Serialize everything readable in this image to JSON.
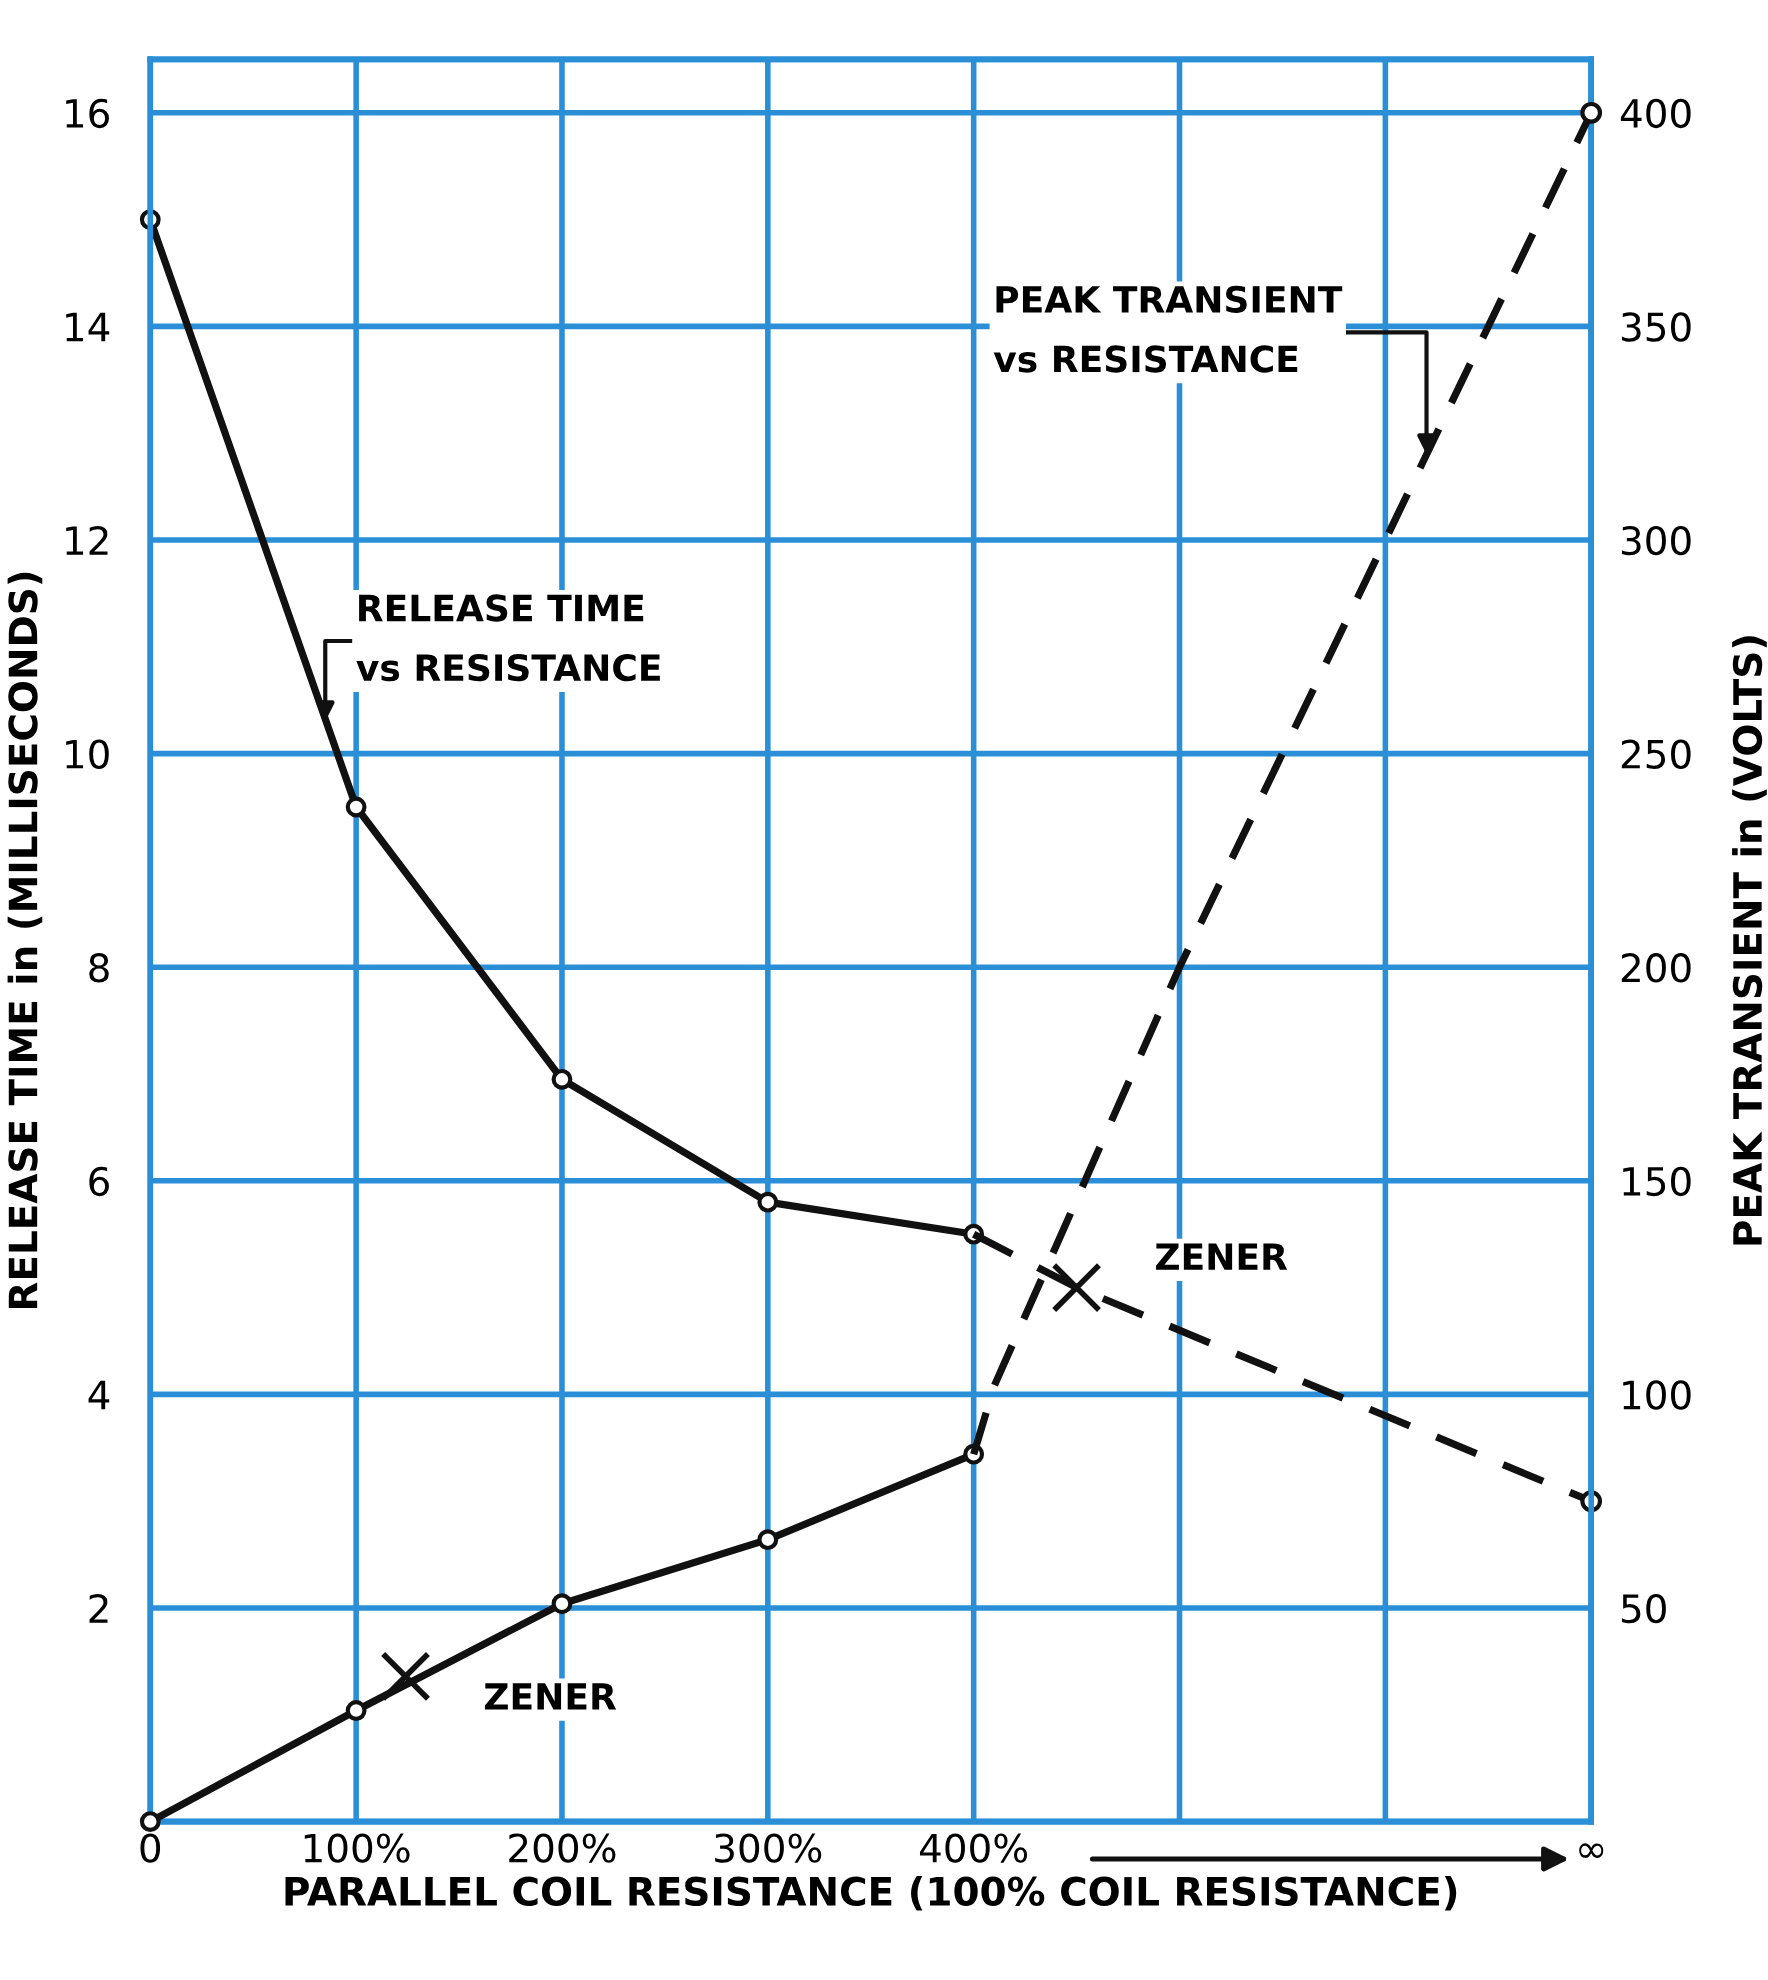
{
  "chart_data": {
    "type": "line",
    "xlabel": "PARALLEL COIL RESISTANCE (100% COIL RESISTANCE)",
    "ylabel": "RELEASE TIME in (MILLISECONDS)",
    "y2label": "PEAK TRANSIENT in (VOLTS)",
    "series": [
      {
        "type": "line",
        "color": "#111111",
        "x": [
          0,
          1,
          2,
          3,
          4
        ],
        "values": [
          15.0,
          9.5,
          6.95,
          5.8,
          5.5
        ],
        "marker": "circle",
        "line_style": "solid"
      },
      {
        "type": "line",
        "color": "#111111",
        "x": [
          4,
          4.5,
          7
        ],
        "values": [
          5.5,
          5.0,
          3.0
        ],
        "marker": "none",
        "line_style": "dashed"
      },
      {
        "type": "line",
        "color": "#111111",
        "x": [
          0,
          1,
          2,
          3,
          4
        ],
        "values": [
          0,
          26,
          51,
          66,
          86
        ],
        "marker": "circle",
        "line_style": "solid",
        "axis": "y2"
      },
      {
        "type": "line",
        "color": "#111111",
        "x": [
          4,
          4.1,
          5,
          6,
          7
        ],
        "values": [
          86,
          102,
          200,
          300,
          400
        ],
        "marker": "none",
        "line_style": "dashed",
        "axis": "y2"
      },
      {
        "type": "scatter",
        "color": "#111111",
        "x": [
          7
        ],
        "values": [
          3.0
        ],
        "marker": "circle"
      },
      {
        "type": "scatter",
        "color": "#111111",
        "x": [
          7
        ],
        "values": [
          400
        ],
        "marker": "circle",
        "axis": "y2"
      },
      {
        "type": "scatter",
        "color": "#111111",
        "x": [
          4.5
        ],
        "values": [
          5.0
        ],
        "marker": "cross"
      },
      {
        "type": "scatter",
        "color": "#111111",
        "x": [
          1.24
        ],
        "values": [
          34
        ],
        "marker": "cross",
        "axis": "y2"
      }
    ],
    "annotations": [
      {
        "text": "RELEASE TIME\nvs RESISTANCE",
        "x": 0.85,
        "y": 10.3
      },
      {
        "text": "PEAK TRANSIENT\nvs RESISTANCE",
        "x": 6.2,
        "y": 12.8
      },
      {
        "text": "ZENER",
        "x": 4.5,
        "y": 5.0
      },
      {
        "text": "ZENER",
        "x": 1.24,
        "y": 1.35
      }
    ],
    "xlim": [
      0,
      7
    ],
    "xticks": [
      0,
      {
        "value": 1,
        "label": "100%"
      },
      {
        "value": 2,
        "label": "200%"
      },
      {
        "value": 3,
        "label": "300%"
      },
      {
        "value": 4,
        "label": "400%"
      },
      {
        "value": 5,
        "label": null
      },
      {
        "value": 6,
        "label": null
      },
      {
        "value": 7,
        "label": "∞"
      }
    ],
    "ylim": [
      0,
      16.5
    ],
    "yticks": [
      {
        "value": 0,
        "label": null
      },
      2,
      4,
      6,
      8,
      10,
      12,
      14,
      16
    ],
    "y2lim": [
      0,
      412.5
    ],
    "y2ticks": [
      {
        "value": 0,
        "label": null
      },
      50,
      100,
      150,
      200,
      250,
      300,
      350,
      400
    ],
    "grid": true,
    "legend": false
  }
}
